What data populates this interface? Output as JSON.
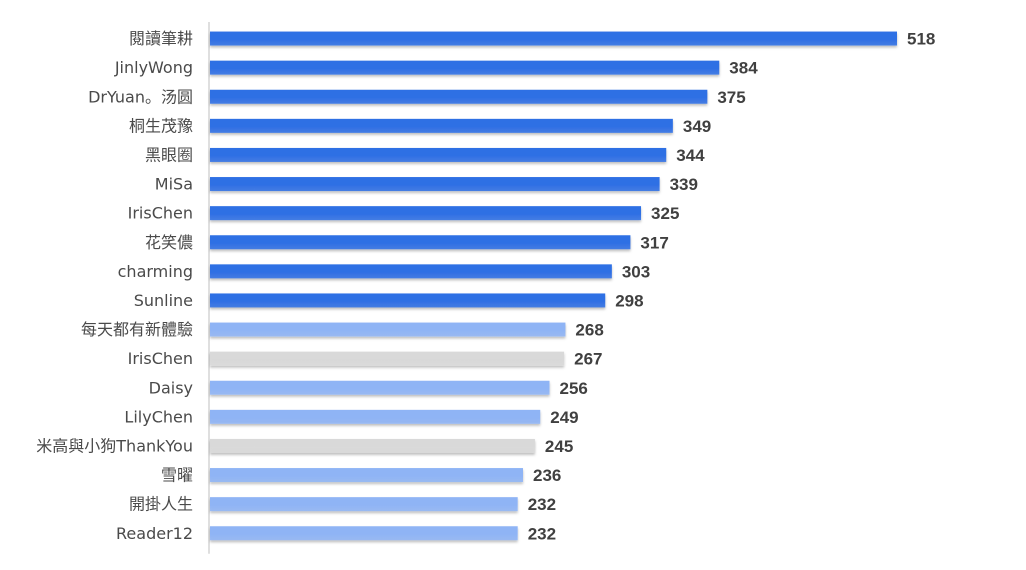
{
  "chart_data": {
    "type": "bar",
    "orientation": "horizontal",
    "title": "",
    "xlabel": "",
    "ylabel": "",
    "grid": false,
    "legend": "none",
    "data_labels": true,
    "xlim": [
      0,
      530
    ],
    "categories": [
      "閱讀筆耕",
      "JinlyWong",
      "DrYuan。汤圆",
      "桐生茂豫",
      "黑眼圈",
      "MiSa",
      "IrisChen",
      "花笑儂",
      "charming",
      "Sunline",
      "每天都有新體驗",
      "IrisChen",
      "Daisy",
      "LilyChen",
      "米高與小狗ThankYou",
      "雪曜",
      "開掛人生",
      "Reader12"
    ],
    "values": [
      518,
      384,
      375,
      349,
      344,
      339,
      325,
      317,
      303,
      298,
      268,
      267,
      256,
      249,
      245,
      236,
      232,
      232
    ],
    "bar_colors": [
      "#2f6fe4",
      "#2f6fe4",
      "#2f6fe4",
      "#2f6fe4",
      "#2f6fe4",
      "#2f6fe4",
      "#2f6fe4",
      "#2f6fe4",
      "#2f6fe4",
      "#2f6fe4",
      "#8fb4f5",
      "#d9d9d9",
      "#8fb4f5",
      "#8fb4f5",
      "#d9d9d9",
      "#8fb4f5",
      "#8fb4f5",
      "#8fb4f5"
    ],
    "colors": {
      "primary": "#2f6fe4",
      "light": "#8fb4f5",
      "gray": "#d9d9d9",
      "axis": "#bfbfbf",
      "value_text": "#404040",
      "label_text": "#4a4a4a"
    }
  }
}
